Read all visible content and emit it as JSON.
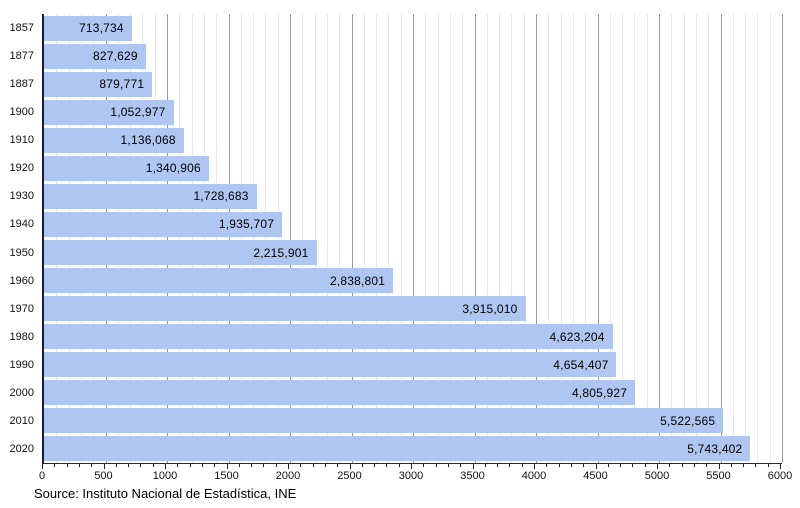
{
  "chart_data": {
    "type": "bar",
    "orientation": "horizontal",
    "title": "",
    "xlabel": "",
    "ylabel": "",
    "categories": [
      "1857",
      "1877",
      "1887",
      "1900",
      "1910",
      "1920",
      "1930",
      "1940",
      "1950",
      "1960",
      "1970",
      "1980",
      "1990",
      "2000",
      "2010",
      "2020"
    ],
    "values": [
      713734,
      827629,
      879771,
      1052977,
      1136068,
      1340906,
      1728683,
      1935707,
      2215901,
      2838801,
      3915010,
      4623204,
      4654407,
      4805927,
      5522565,
      5743402
    ],
    "value_labels": [
      "713,734",
      "827,629",
      "879,771",
      "1,052,977",
      "1,136,068",
      "1,340,906",
      "1,728,683",
      "1,935,707",
      "2,215,901",
      "2,838,801",
      "3,915,010",
      "4,623,204",
      "4,654,407",
      "4,805,927",
      "5,522,565",
      "5,743,402"
    ],
    "xlim": [
      0,
      6000
    ],
    "x_axis_unit": "thousands",
    "x_major_tick_step": 500,
    "x_minor_tick_step": 100,
    "x_tick_labels": [
      "0",
      "500",
      "1000",
      "1500",
      "2000",
      "2500",
      "3000",
      "3500",
      "4000",
      "4500",
      "5000",
      "5500",
      "6000"
    ],
    "grid": "vertical; minor lines every 100, major lines every 500",
    "legend": "none",
    "colors": {
      "bar_fill": "#aec6f1",
      "grid_minor": "#e7e7e7",
      "grid_major": "#9a9a9a",
      "axis_line": "#1c1c2e",
      "text": "#000000",
      "background": "#ffffff"
    }
  },
  "source": {
    "text": "Source: Instituto Nacional de Estadística, INE"
  }
}
